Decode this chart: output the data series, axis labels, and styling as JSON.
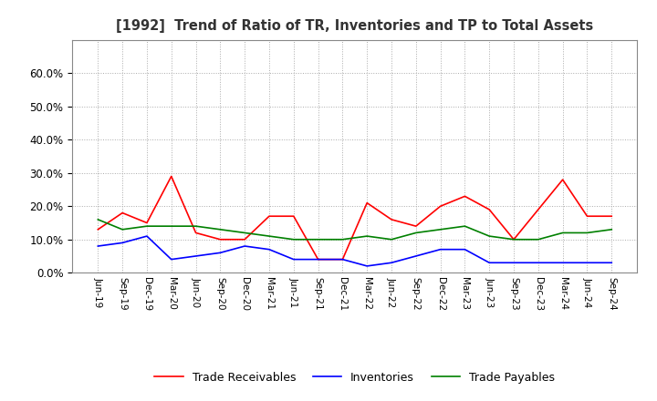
{
  "title": "[1992]  Trend of Ratio of TR, Inventories and TP to Total Assets",
  "x_labels": [
    "Jun-19",
    "Sep-19",
    "Dec-19",
    "Mar-20",
    "Jun-20",
    "Sep-20",
    "Dec-20",
    "Mar-21",
    "Jun-21",
    "Sep-21",
    "Dec-21",
    "Mar-22",
    "Jun-22",
    "Sep-22",
    "Dec-22",
    "Mar-23",
    "Jun-23",
    "Sep-23",
    "Dec-23",
    "Mar-24",
    "Jun-24",
    "Sep-24"
  ],
  "trade_receivables": [
    0.13,
    0.18,
    0.15,
    0.29,
    0.12,
    0.1,
    0.1,
    0.17,
    0.17,
    0.04,
    0.04,
    0.21,
    0.16,
    0.14,
    0.2,
    0.23,
    0.19,
    0.1,
    0.19,
    0.28,
    0.17,
    0.17
  ],
  "inventories": [
    0.08,
    0.09,
    0.11,
    0.04,
    0.05,
    0.06,
    0.08,
    0.07,
    0.04,
    0.04,
    0.04,
    0.02,
    0.03,
    0.05,
    0.07,
    0.07,
    0.03,
    0.03,
    0.03,
    0.03,
    0.03,
    0.03
  ],
  "trade_payables": [
    0.16,
    0.13,
    0.14,
    0.14,
    0.14,
    0.13,
    0.12,
    0.11,
    0.1,
    0.1,
    0.1,
    0.11,
    0.1,
    0.12,
    0.13,
    0.14,
    0.11,
    0.1,
    0.1,
    0.12,
    0.12,
    0.13
  ],
  "ylim": [
    0.0,
    0.7
  ],
  "yticks": [
    0.0,
    0.1,
    0.2,
    0.3,
    0.4,
    0.5,
    0.6
  ],
  "line_colors": {
    "trade_receivables": "#ff0000",
    "inventories": "#0000ff",
    "trade_payables": "#008000"
  },
  "legend_labels": [
    "Trade Receivables",
    "Inventories",
    "Trade Payables"
  ],
  "background_color": "#ffffff",
  "grid_color": "#aaaaaa"
}
